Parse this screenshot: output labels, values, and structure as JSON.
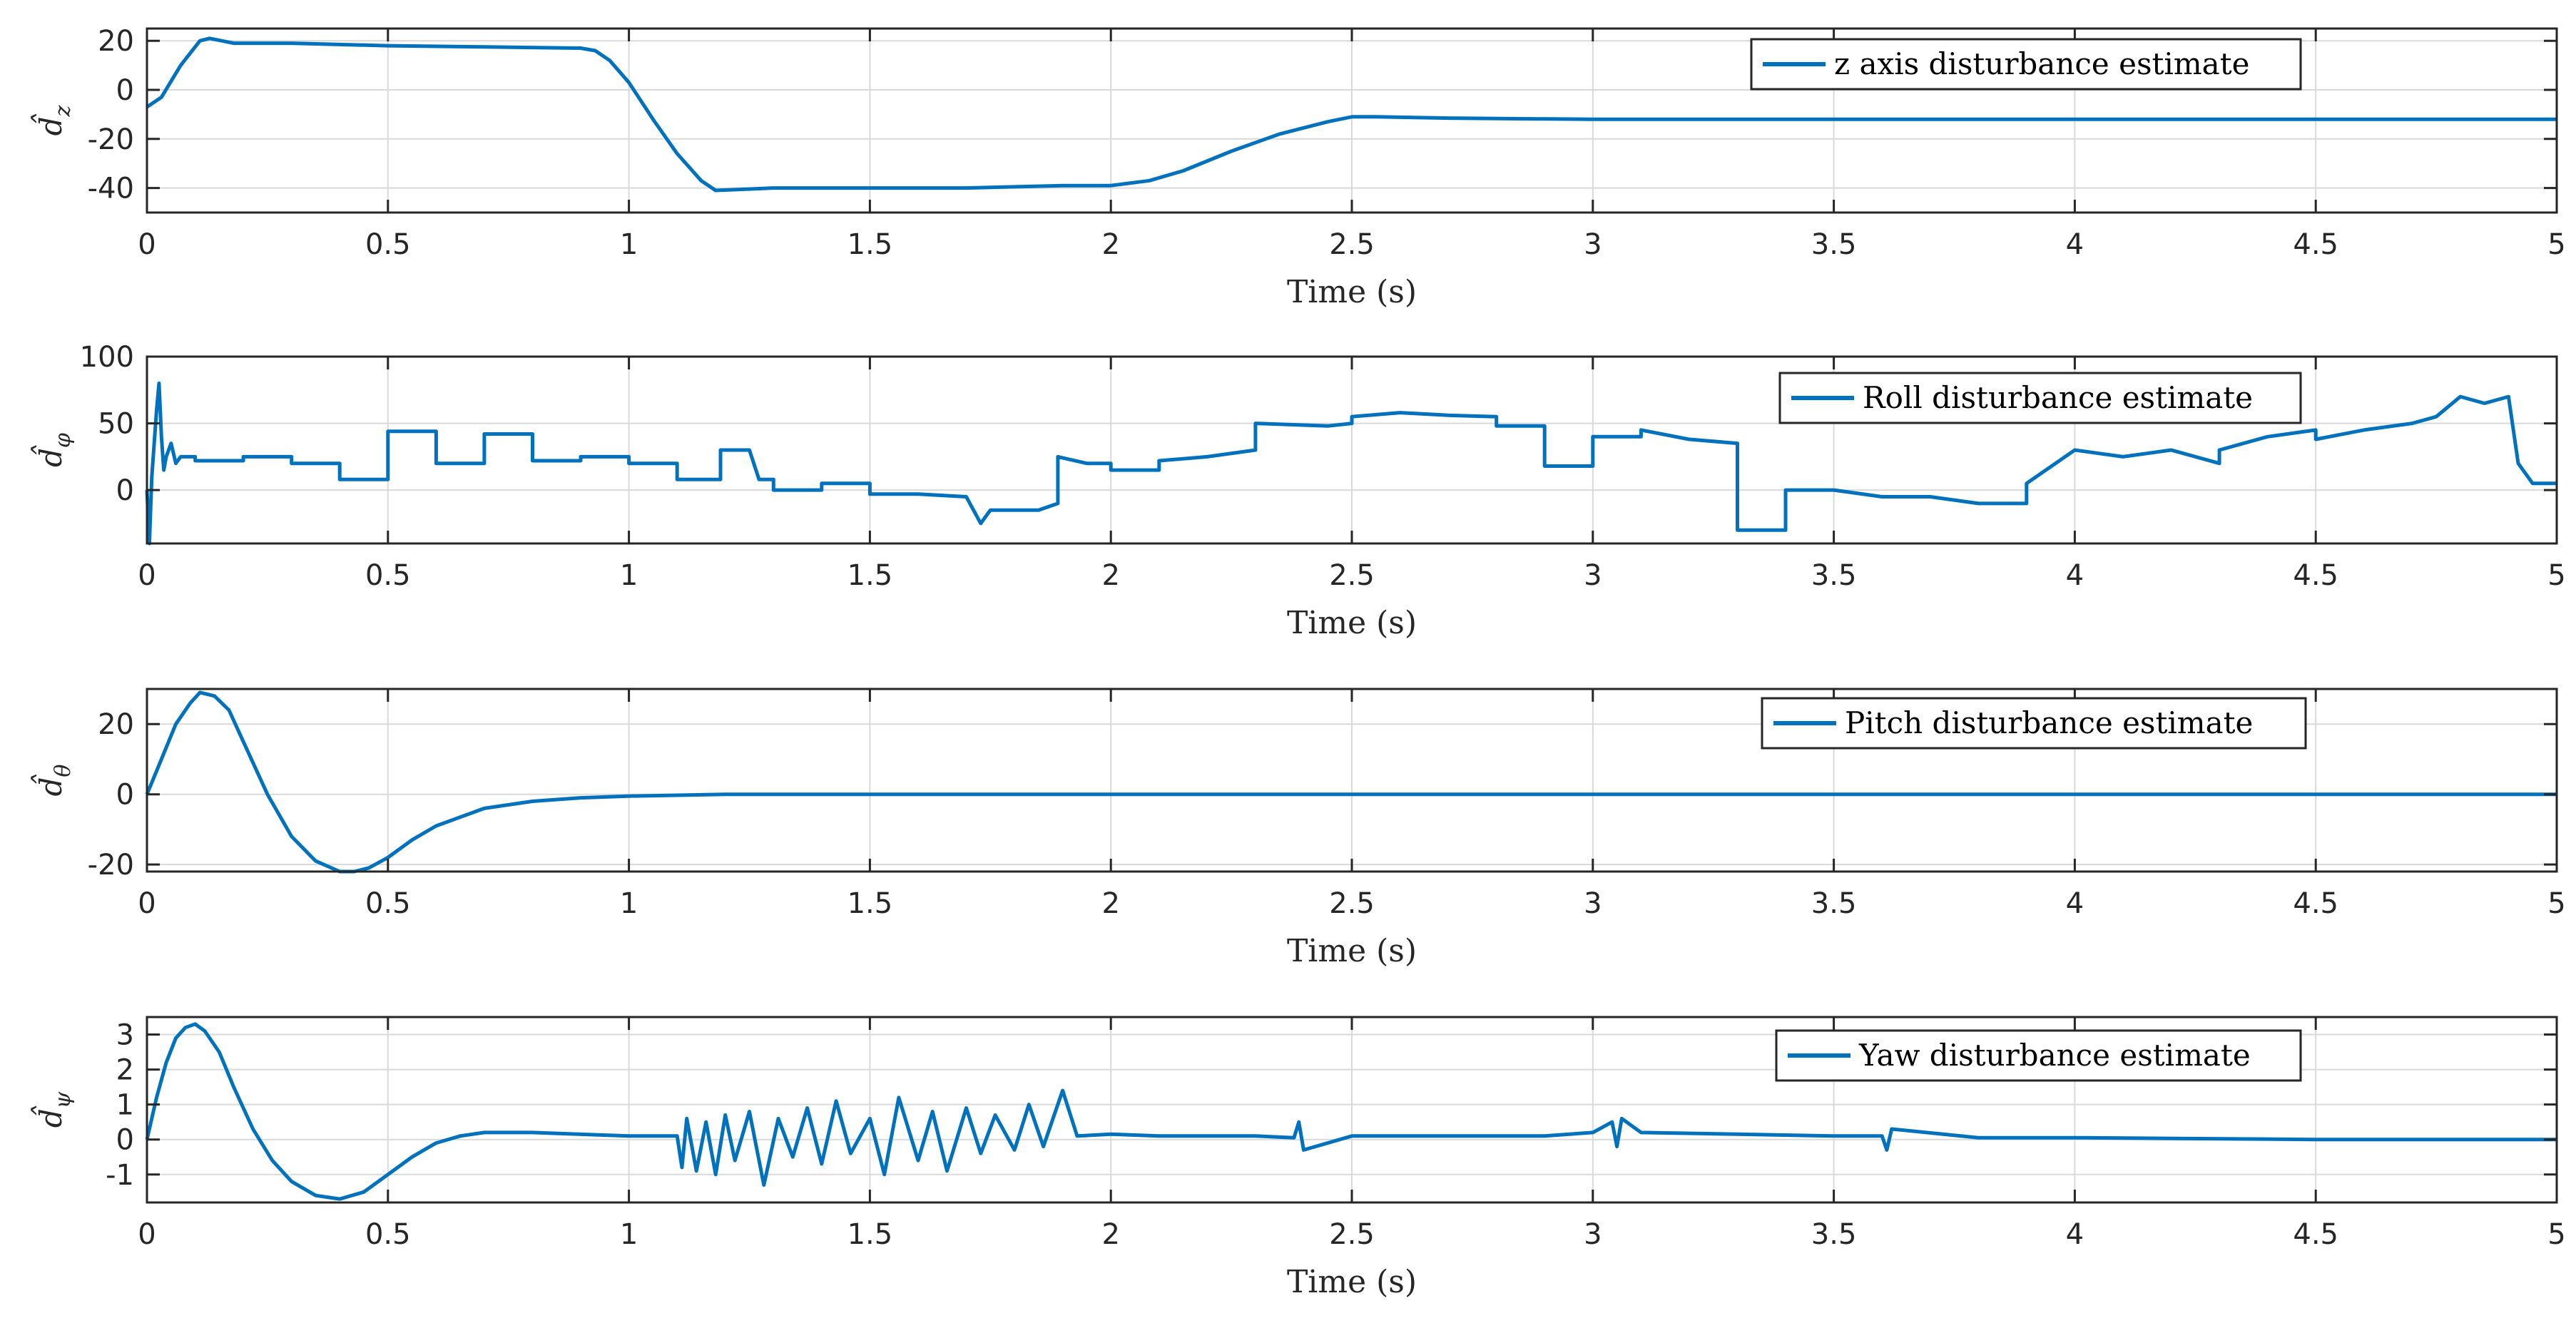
{
  "colors": {
    "series": "#0072bd",
    "axes": "#262626",
    "grid": "#d9d9d9"
  },
  "chart_data": [
    {
      "type": "line",
      "ylabel": "d̂z",
      "ylabel_base": "d̂",
      "ylabel_sub": "z",
      "xlabel": "Time (s)",
      "xlim": [
        0,
        5
      ],
      "ylim": [
        -50,
        25
      ],
      "xticks": [
        0,
        0.5,
        1,
        1.5,
        2,
        2.5,
        3,
        3.5,
        4,
        4.5,
        5
      ],
      "xtick_labels": [
        "0",
        "0.5",
        "1",
        "1.5",
        "2",
        "2.5",
        "3",
        "3.5",
        "4",
        "4.5",
        "5"
      ],
      "yticks": [
        -40,
        -20,
        0,
        20
      ],
      "ytick_labels": [
        "-40",
        "-20",
        "0",
        "20"
      ],
      "grid": true,
      "legend_position": "top-right",
      "series": [
        {
          "name": "z axis disturbance estimate",
          "x": [
            0,
            0.03,
            0.07,
            0.11,
            0.13,
            0.18,
            0.3,
            0.5,
            0.7,
            0.9,
            0.93,
            0.96,
            1.0,
            1.05,
            1.1,
            1.15,
            1.18,
            1.3,
            1.5,
            1.7,
            1.9,
            2.0,
            2.08,
            2.15,
            2.25,
            2.35,
            2.45,
            2.5,
            2.55,
            2.7,
            3.0,
            3.5,
            4.0,
            4.5,
            5.0
          ],
          "y": [
            -7,
            -3,
            10,
            20,
            21,
            19,
            19,
            18,
            17.5,
            17,
            16,
            12,
            3,
            -12,
            -26,
            -37,
            -41,
            -40,
            -40,
            -40,
            -39,
            -39,
            -37,
            -33,
            -25,
            -18,
            -13,
            -11,
            -11,
            -11.5,
            -12,
            -12,
            -12,
            -12,
            -12
          ]
        }
      ]
    },
    {
      "type": "line",
      "ylabel": "d̂φ",
      "ylabel_base": "d̂",
      "ylabel_sub": "φ",
      "xlabel": "Time (s)",
      "xlim": [
        0,
        5
      ],
      "ylim": [
        -40,
        100
      ],
      "xticks": [
        0,
        0.5,
        1,
        1.5,
        2,
        2.5,
        3,
        3.5,
        4,
        4.5,
        5
      ],
      "xtick_labels": [
        "0",
        "0.5",
        "1",
        "1.5",
        "2",
        "2.5",
        "3",
        "3.5",
        "4",
        "4.5",
        "5"
      ],
      "yticks": [
        0,
        50,
        100
      ],
      "ytick_labels": [
        "0",
        "50",
        "100"
      ],
      "grid": true,
      "legend_position": "top-right",
      "series": [
        {
          "name": "Roll disturbance estimate",
          "x": [
            0,
            0.005,
            0.01,
            0.02,
            0.025,
            0.03,
            0.035,
            0.04,
            0.05,
            0.06,
            0.07,
            0.1,
            0.1,
            0.2,
            0.2,
            0.3,
            0.3,
            0.4,
            0.4,
            0.5,
            0.5,
            0.6,
            0.6,
            0.7,
            0.7,
            0.8,
            0.8,
            0.9,
            0.9,
            1.0,
            1.0,
            1.1,
            1.1,
            1.19,
            1.19,
            1.25,
            1.27,
            1.3,
            1.3,
            1.4,
            1.4,
            1.5,
            1.5,
            1.6,
            1.7,
            1.73,
            1.75,
            1.85,
            1.89,
            1.89,
            1.95,
            2.0,
            2.0,
            2.1,
            2.1,
            2.2,
            2.3,
            2.3,
            2.45,
            2.5,
            2.5,
            2.6,
            2.7,
            2.8,
            2.8,
            2.9,
            2.9,
            3.0,
            3.0,
            3.1,
            3.1,
            3.2,
            3.3,
            3.3,
            3.4,
            3.4,
            3.5,
            3.6,
            3.7,
            3.8,
            3.9,
            3.9,
            4.0,
            4.1,
            4.2,
            4.3,
            4.3,
            4.4,
            4.5,
            4.5,
            4.6,
            4.7,
            4.75,
            4.8,
            4.85,
            4.9,
            4.92,
            4.95,
            5.0
          ],
          "y": [
            0,
            -40,
            10,
            60,
            80,
            40,
            15,
            25,
            35,
            20,
            25,
            25,
            22,
            22,
            25,
            25,
            20,
            20,
            8,
            8,
            44,
            44,
            20,
            20,
            42,
            42,
            22,
            22,
            25,
            25,
            20,
            20,
            8,
            8,
            30,
            30,
            8,
            8,
            0,
            0,
            5,
            5,
            -3,
            -3,
            -5,
            -25,
            -15,
            -15,
            -10,
            25,
            20,
            20,
            15,
            15,
            22,
            25,
            30,
            50,
            48,
            50,
            55,
            58,
            56,
            55,
            48,
            48,
            18,
            18,
            40,
            40,
            45,
            38,
            35,
            -30,
            -30,
            0,
            0,
            -5,
            -5,
            -10,
            -10,
            5,
            30,
            25,
            30,
            20,
            30,
            40,
            45,
            38,
            45,
            50,
            55,
            70,
            65,
            70,
            20,
            5,
            5
          ]
        }
      ]
    },
    {
      "type": "line",
      "ylabel": "d̂θ",
      "ylabel_base": "d̂",
      "ylabel_sub": "θ",
      "xlabel": "Time (s)",
      "xlim": [
        0,
        5
      ],
      "ylim": [
        -22,
        30
      ],
      "xticks": [
        0,
        0.5,
        1,
        1.5,
        2,
        2.5,
        3,
        3.5,
        4,
        4.5,
        5
      ],
      "xtick_labels": [
        "0",
        "0.5",
        "1",
        "1.5",
        "2",
        "2.5",
        "3",
        "3.5",
        "4",
        "4.5",
        "5"
      ],
      "yticks": [
        -20,
        0,
        20
      ],
      "ytick_labels": [
        "-20",
        "0",
        "20"
      ],
      "grid": true,
      "legend_position": "top-right",
      "series": [
        {
          "name": "Pitch disturbance estimate",
          "x": [
            0,
            0.03,
            0.06,
            0.09,
            0.11,
            0.14,
            0.17,
            0.2,
            0.25,
            0.3,
            0.35,
            0.4,
            0.43,
            0.46,
            0.5,
            0.55,
            0.6,
            0.7,
            0.8,
            0.9,
            1.0,
            1.2,
            1.5,
            2.0,
            3.0,
            4.0,
            5.0
          ],
          "y": [
            0,
            10,
            20,
            26,
            29,
            28,
            24,
            15,
            0,
            -12,
            -19,
            -22,
            -22,
            -21,
            -18,
            -13,
            -9,
            -4,
            -2,
            -1,
            -0.5,
            0,
            0,
            0,
            0,
            0,
            0
          ]
        }
      ]
    },
    {
      "type": "line",
      "ylabel": "d̂ψ",
      "ylabel_base": "d̂",
      "ylabel_sub": "ψ",
      "xlabel": "Time (s)",
      "xlim": [
        0,
        5
      ],
      "ylim": [
        -1.8,
        3.5
      ],
      "xticks": [
        0,
        0.5,
        1,
        1.5,
        2,
        2.5,
        3,
        3.5,
        4,
        4.5,
        5
      ],
      "xtick_labels": [
        "0",
        "0.5",
        "1",
        "1.5",
        "2",
        "2.5",
        "3",
        "3.5",
        "4",
        "4.5",
        "5"
      ],
      "yticks": [
        -1,
        0,
        1,
        2,
        3
      ],
      "ytick_labels": [
        "-1",
        "0",
        "1",
        "2",
        "3"
      ],
      "grid": true,
      "legend_position": "top-right",
      "series": [
        {
          "name": "Yaw disturbance estimate",
          "x": [
            0,
            0.02,
            0.04,
            0.06,
            0.08,
            0.1,
            0.12,
            0.15,
            0.18,
            0.22,
            0.26,
            0.3,
            0.35,
            0.4,
            0.45,
            0.5,
            0.55,
            0.6,
            0.65,
            0.7,
            0.8,
            1.0,
            1.1,
            1.11,
            1.12,
            1.14,
            1.16,
            1.18,
            1.2,
            1.22,
            1.25,
            1.28,
            1.31,
            1.34,
            1.37,
            1.4,
            1.43,
            1.46,
            1.5,
            1.53,
            1.56,
            1.6,
            1.63,
            1.66,
            1.7,
            1.73,
            1.76,
            1.8,
            1.83,
            1.86,
            1.9,
            1.93,
            2.0,
            2.1,
            2.2,
            2.3,
            2.38,
            2.39,
            2.4,
            2.5,
            2.7,
            2.9,
            3.0,
            3.04,
            3.05,
            3.06,
            3.1,
            3.3,
            3.5,
            3.6,
            3.61,
            3.62,
            3.8,
            4.0,
            4.5,
            5.0
          ],
          "y": [
            0,
            1.2,
            2.2,
            2.9,
            3.2,
            3.3,
            3.1,
            2.5,
            1.5,
            0.3,
            -0.6,
            -1.2,
            -1.6,
            -1.7,
            -1.5,
            -1.0,
            -0.5,
            -0.1,
            0.1,
            0.2,
            0.2,
            0.1,
            0.1,
            -0.8,
            0.6,
            -0.9,
            0.5,
            -1.0,
            0.7,
            -0.6,
            0.8,
            -1.3,
            0.6,
            -0.5,
            0.9,
            -0.7,
            1.1,
            -0.4,
            0.6,
            -1.0,
            1.2,
            -0.6,
            0.8,
            -0.9,
            0.9,
            -0.4,
            0.7,
            -0.3,
            1.0,
            -0.2,
            1.4,
            0.1,
            0.15,
            0.1,
            0.1,
            0.1,
            0.05,
            0.5,
            -0.3,
            0.1,
            0.1,
            0.1,
            0.2,
            0.5,
            -0.2,
            0.6,
            0.2,
            0.15,
            0.1,
            0.1,
            -0.3,
            0.3,
            0.05,
            0.05,
            0.0,
            0.0
          ]
        }
      ]
    }
  ]
}
